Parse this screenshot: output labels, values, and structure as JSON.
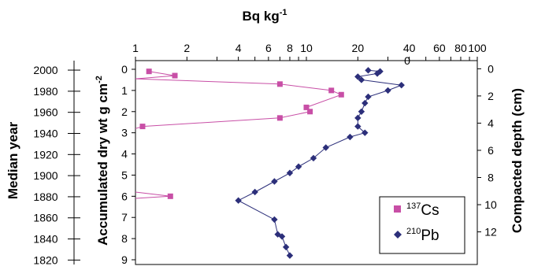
{
  "chart_data": {
    "type": "scatter",
    "title": "",
    "top_axis": {
      "label_main": "Bq kg",
      "label_sup": "-1",
      "scale": "log",
      "range": [
        1,
        100
      ],
      "ticks": [
        "1",
        "2",
        "4",
        "6",
        "8",
        "10",
        "20",
        "40",
        "60",
        "80",
        "100"
      ],
      "extra_tick_label": "0"
    },
    "left_axis_inner": {
      "label_main": "Accumulated dry wt g cm",
      "label_sup": "-2",
      "range": [
        9,
        -0.5
      ],
      "ticks": [
        "0",
        "1",
        "2",
        "3",
        "4",
        "5",
        "6",
        "7",
        "8",
        "9"
      ]
    },
    "left_axis_outer": {
      "label": "Median year",
      "range": [
        1815.8,
        2009
      ],
      "ticks": [
        "2000",
        "1980",
        "1960",
        "1940",
        "1920",
        "1900",
        "1880",
        "1860",
        "1840",
        "1820"
      ]
    },
    "right_axis": {
      "label": "Compacted depth (cm)",
      "range": [
        -0.6,
        14.4
      ],
      "ticks": [
        "0",
        "2",
        "4",
        "6",
        "8",
        "10",
        "12"
      ]
    },
    "grid": false,
    "legend_position": "bottom-right",
    "series": [
      {
        "name_sup": "137",
        "name_main": "Cs",
        "color": "#c84fa6",
        "marker": "square",
        "points": [
          {
            "x": 1.2,
            "y": 0.1
          },
          {
            "x": 1.7,
            "y": 0.3
          },
          {
            "x": 0.8,
            "y": 0.45
          },
          {
            "x": 7.0,
            "y": 0.7
          },
          {
            "x": 14.0,
            "y": 1.0
          },
          {
            "x": 16.0,
            "y": 1.2
          },
          {
            "x": 10.0,
            "y": 1.8
          },
          {
            "x": 10.5,
            "y": 2.0
          },
          {
            "x": 7.0,
            "y": 2.3
          },
          {
            "x": 1.1,
            "y": 2.7
          },
          {
            "x": 0.8,
            "y": 2.8
          }
        ],
        "points_lower": [
          {
            "x": 0.8,
            "y": 5.8
          },
          {
            "x": 1.6,
            "y": 6.0
          },
          {
            "x": 0.8,
            "y": 6.1
          }
        ]
      },
      {
        "name_sup": "210",
        "name_main": "Pb",
        "color": "#2c2f7a",
        "marker": "diamond",
        "points": [
          {
            "x": 23,
            "y": 0.05
          },
          {
            "x": 27,
            "y": 0.1
          },
          {
            "x": 26,
            "y": 0.2
          },
          {
            "x": 20,
            "y": 0.35
          },
          {
            "x": 21,
            "y": 0.5
          },
          {
            "x": 36,
            "y": 0.75
          },
          {
            "x": 30,
            "y": 1.0
          },
          {
            "x": 23,
            "y": 1.3
          },
          {
            "x": 22,
            "y": 1.6
          },
          {
            "x": 21,
            "y": 2.0
          },
          {
            "x": 20,
            "y": 2.3
          },
          {
            "x": 20,
            "y": 2.7
          },
          {
            "x": 22,
            "y": 3.0
          },
          {
            "x": 18,
            "y": 3.2
          },
          {
            "x": 13,
            "y": 3.7
          },
          {
            "x": 11,
            "y": 4.2
          },
          {
            "x": 9,
            "y": 4.6
          },
          {
            "x": 8,
            "y": 4.9
          },
          {
            "x": 6.5,
            "y": 5.3
          },
          {
            "x": 5,
            "y": 5.8
          },
          {
            "x": 4,
            "y": 6.2
          },
          {
            "x": 6.5,
            "y": 7.1
          },
          {
            "x": 6.8,
            "y": 7.8
          },
          {
            "x": 7.2,
            "y": 7.9
          },
          {
            "x": 7.6,
            "y": 8.4
          },
          {
            "x": 8.0,
            "y": 8.8
          }
        ]
      }
    ]
  }
}
